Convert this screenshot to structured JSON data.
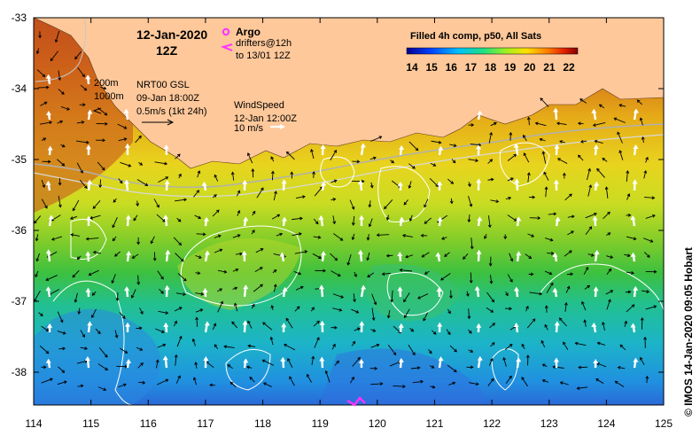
{
  "header": {
    "date": "12-Jan-2020",
    "hour": "12Z"
  },
  "argo": {
    "argo_label": "Argo",
    "drifters_label": "drifters@12h",
    "drifters_until": "to 13/01 12Z",
    "argo_color": "#ff33ff"
  },
  "contours": {
    "depth_200": "200m",
    "depth_1000": "1000m"
  },
  "currents": {
    "source": "NRT00 GSL",
    "time": "09-Jan 18:00Z",
    "scale": "0.5m/s (1kt 24h)"
  },
  "wind": {
    "title": "WindSpeed",
    "time": "12-Jan 12:00Z",
    "scale": "10 m/s"
  },
  "colorbar": {
    "title": "Filled 4h comp, p50, All Sats",
    "ticks": [
      "14",
      "15",
      "16",
      "17",
      "18",
      "19",
      "20",
      "21",
      "22"
    ]
  },
  "axes": {
    "lon_ticks": [
      "114",
      "115",
      "116",
      "117",
      "118",
      "119",
      "120",
      "121",
      "122",
      "123",
      "124",
      "125"
    ],
    "lat_ticks": [
      "-33",
      "-34",
      "-35",
      "-36",
      "-37",
      "-38"
    ]
  },
  "credit": "© IMOS 14-Jan-2020 09:05 Hobart",
  "colors": {
    "land": "#fec89a",
    "sst_warm": "#c0401a",
    "sst_mid": "#e8d020",
    "sst_green": "#40c040",
    "sst_cool": "#20b0c0",
    "sst_cold": "#2060e0"
  }
}
